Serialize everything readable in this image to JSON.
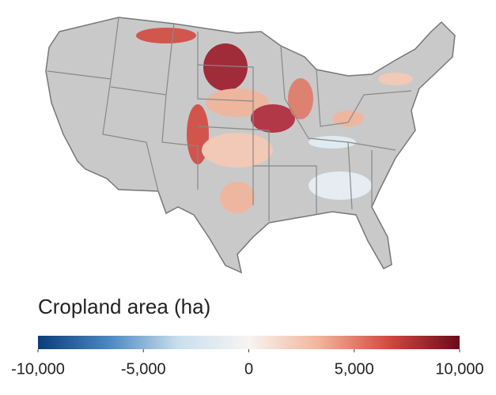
{
  "legend": {
    "title": "Cropland area (ha)",
    "range": [
      -10000,
      10000
    ],
    "ticks": [
      {
        "value": -10000,
        "label": "-10,000"
      },
      {
        "value": -5000,
        "label": "-5,000"
      },
      0,
      {
        "value": 5000,
        "label": "5,000"
      },
      {
        "value": 10000,
        "label": "10,000"
      }
    ],
    "colors": [
      "#0b3d7a",
      "#4b87c0",
      "#c9dfee",
      "#f7f4f2",
      "#f2b49a",
      "#d2493f",
      "#6b0a1b"
    ]
  }
}
